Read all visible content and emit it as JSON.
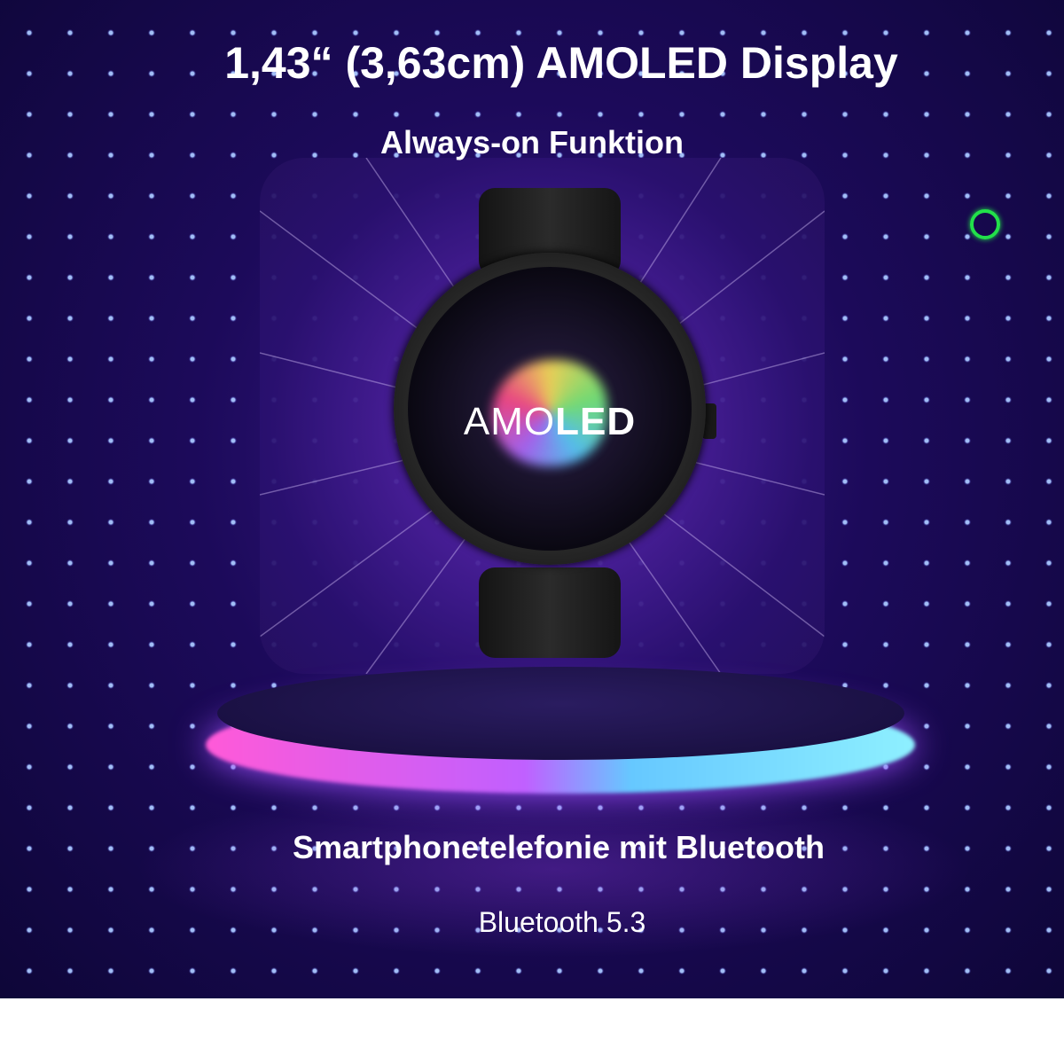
{
  "headline": "1,43“ (3,63cm) AMOLED Display",
  "feature_1": "Always-on Funktion",
  "watch_screen": {
    "text_light": "AMO",
    "text_bold": "LED"
  },
  "feature_2": "Smartphonetelefonie mit Bluetooth",
  "feature_3": "Bluetooth 5.3",
  "colors": {
    "background": "#1c0a5a",
    "ring_indicator": "#22e04a",
    "glow_pink": "#ff5ad8",
    "glow_cyan": "#8ef0ff"
  },
  "icons": [
    "green-ring-icon"
  ]
}
